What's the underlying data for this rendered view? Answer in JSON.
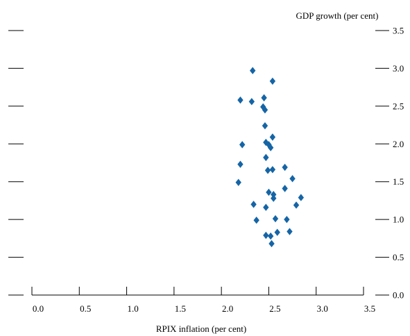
{
  "chart_data": {
    "type": "scatter",
    "xlabel": "RPIX inflation (per cent)",
    "ylabel": "GDP growth (per cent)",
    "xlim": [
      0.0,
      3.5
    ],
    "ylim": [
      0.0,
      3.5
    ],
    "x_ticks": [
      "0.0",
      "0.5",
      "1.0",
      "1.5",
      "2.0",
      "2.5",
      "3.0",
      "3.5"
    ],
    "y_ticks": [
      "0.0",
      "0.5",
      "1.0",
      "1.5",
      "2.0",
      "2.5",
      "3.0",
      "3.5"
    ],
    "grid": false,
    "marker": "diamond",
    "color": "#1565a6",
    "points": [
      {
        "x": 2.33,
        "y": 2.97
      },
      {
        "x": 2.54,
        "y": 2.83
      },
      {
        "x": 2.2,
        "y": 2.58
      },
      {
        "x": 2.32,
        "y": 2.56
      },
      {
        "x": 2.45,
        "y": 2.61
      },
      {
        "x": 2.44,
        "y": 2.49
      },
      {
        "x": 2.46,
        "y": 2.45
      },
      {
        "x": 2.46,
        "y": 2.24
      },
      {
        "x": 2.54,
        "y": 2.09
      },
      {
        "x": 2.22,
        "y": 1.99
      },
      {
        "x": 2.47,
        "y": 2.02
      },
      {
        "x": 2.5,
        "y": 1.99
      },
      {
        "x": 2.52,
        "y": 1.95
      },
      {
        "x": 2.47,
        "y": 1.82
      },
      {
        "x": 2.2,
        "y": 1.73
      },
      {
        "x": 2.49,
        "y": 1.65
      },
      {
        "x": 2.54,
        "y": 1.66
      },
      {
        "x": 2.67,
        "y": 1.69
      },
      {
        "x": 2.18,
        "y": 1.49
      },
      {
        "x": 2.75,
        "y": 1.54
      },
      {
        "x": 2.67,
        "y": 1.41
      },
      {
        "x": 2.5,
        "y": 1.36
      },
      {
        "x": 2.55,
        "y": 1.33
      },
      {
        "x": 2.55,
        "y": 1.28
      },
      {
        "x": 2.34,
        "y": 1.2
      },
      {
        "x": 2.47,
        "y": 1.16
      },
      {
        "x": 2.84,
        "y": 1.29
      },
      {
        "x": 2.79,
        "y": 1.19
      },
      {
        "x": 2.37,
        "y": 0.99
      },
      {
        "x": 2.57,
        "y": 1.01
      },
      {
        "x": 2.69,
        "y": 1.0
      },
      {
        "x": 2.59,
        "y": 0.83
      },
      {
        "x": 2.72,
        "y": 0.84
      },
      {
        "x": 2.47,
        "y": 0.79
      },
      {
        "x": 2.52,
        "y": 0.78
      },
      {
        "x": 2.53,
        "y": 0.68
      }
    ]
  }
}
